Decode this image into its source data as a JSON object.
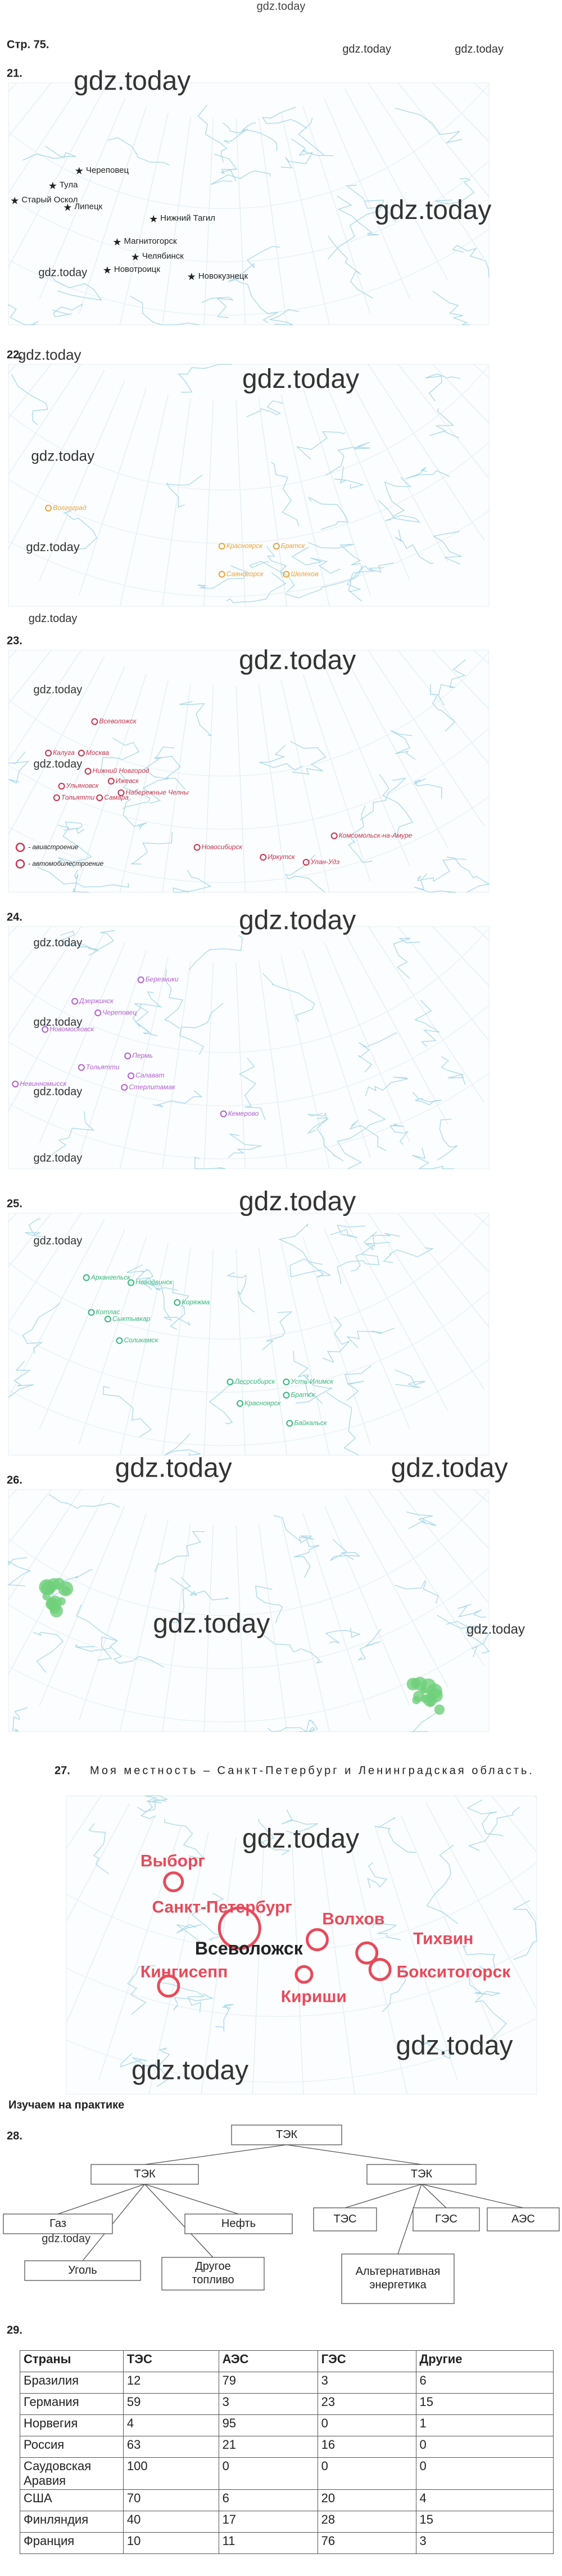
{
  "header": {
    "site": "gdz.today",
    "page": "Стр. 75."
  },
  "watermarks": [
    "gdz.today",
    "gdz.today",
    "gdz.today",
    "gdz.today",
    "gdz.today",
    "gdz.today",
    "gdz.today",
    "gdz.today",
    "gdz.today",
    "gdz.today",
    "gdz.today",
    "gdz.today",
    "gdz.today",
    "gdz.today",
    "gdz.today",
    "gdz.today",
    "gdz.today",
    "gdz.today",
    "gdz.today",
    "gdz.today",
    "gdz.today",
    "gdz.today",
    "gdz.today",
    "gdz.today",
    "gdz.today",
    "gdz.today",
    "gdz.today",
    "gdz.today"
  ],
  "tasks": [
    {
      "number": "21.",
      "labels": [
        "Череповец",
        "Тула",
        "Старый Оскол",
        "Липецк",
        "Нижний Тагил",
        "Магнитогорск",
        "Челябинск",
        "Новотроицк",
        "Новокузнецк"
      ]
    },
    {
      "number": "22.",
      "labels": [
        "Волгоград",
        "Красноярск",
        "Братск",
        "Саяногорск",
        "Шелехов"
      ]
    },
    {
      "number": "23.",
      "labels": [
        "Всеволожск",
        "Калуга",
        "Москва",
        "Нижний Новгород",
        "Ижевск",
        "Набережные Челны",
        "Ульяновск",
        "Тольятти",
        "Самара",
        "Новосибирск",
        "Иркутск",
        "Улан-Удэ",
        "Комсомольск-на-Амуре"
      ],
      "legend": [
        "- авиастроение",
        "- автомобилестроение"
      ]
    },
    {
      "number": "24.",
      "labels": [
        "Березники",
        "Дзержинск",
        "Череповец",
        "Новомосковск",
        "Тольятти",
        "Пермь",
        "Невинномысск",
        "Салават",
        "Стерлитамак",
        "Кемерово"
      ]
    },
    {
      "number": "25.",
      "labels": [
        "Архангельск",
        "Новодвинск",
        "Котлас",
        "Коряжма",
        "Сыктывкар",
        "Соликамск",
        "Лесосибирск",
        "Усть-Илимск",
        "Братск",
        "Красноярск",
        "Байкальск"
      ]
    },
    {
      "number": "26."
    }
  ],
  "task27": {
    "number": "27.",
    "text": "Моя местность – Санкт-Петербург и Ленинградская область.",
    "labels": [
      "Выборг",
      "Санкт-Петербург",
      "Всеволожск",
      "Волхов",
      "Тихвин",
      "Кингисепп",
      "Кириши",
      "Бокситогорск"
    ]
  },
  "practice": "Изучаем на практике",
  "diagram": {
    "number": "28.",
    "nodes": [
      "ТЭК",
      "ТЭК",
      "ТЭК",
      "Газ",
      "Нефть",
      "Уголь",
      "Другое топливо",
      "ТЭС",
      "ГЭС",
      "АЭС",
      "Альтернативная энергетика"
    ]
  },
  "table": {
    "number": "29.",
    "header": [
      "Страны",
      "ТЭС",
      "АЭС",
      "ГЭС",
      "Другие"
    ],
    "rows": [
      [
        "Бразилия",
        12,
        79,
        3,
        6
      ],
      [
        "Германия",
        59,
        3,
        23,
        15
      ],
      [
        "Норвегия",
        4,
        95,
        0,
        1
      ],
      [
        "Россия",
        63,
        21,
        16,
        0
      ],
      [
        "Саудовская Аравия",
        100,
        0,
        0,
        0
      ],
      [
        "США",
        70,
        6,
        20,
        4
      ],
      [
        "Финляндия",
        40,
        17,
        28,
        15
      ],
      [
        "Франция",
        10,
        11,
        76,
        3
      ]
    ]
  }
}
